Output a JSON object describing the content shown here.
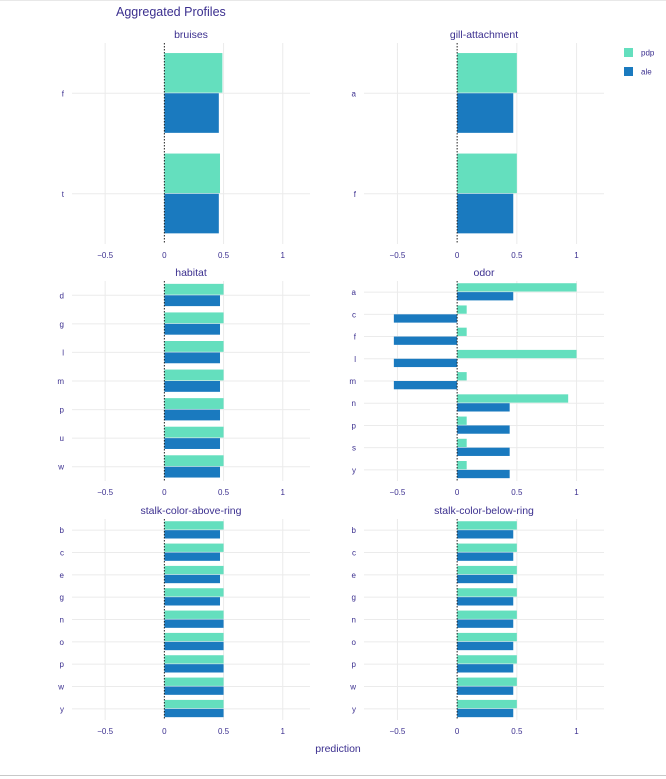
{
  "chart_data": {
    "type": "bar",
    "orientation": "horizontal",
    "title": "Aggregated Profiles",
    "xlabel": "prediction",
    "xlim": [
      -0.78,
      1.23
    ],
    "xticks": [
      -0.5,
      0,
      0.5,
      1
    ],
    "xtick_labels": [
      "−0.5",
      "0",
      "0.5",
      "1"
    ],
    "baseline": 0,
    "grid": true,
    "legend_position": "top-right",
    "legend": [
      {
        "name": "pdp",
        "color": "#64dfbe"
      },
      {
        "name": "ale",
        "color": "#1a7abf"
      }
    ],
    "panels": [
      {
        "title": "bruises",
        "categories": [
          "f",
          "t"
        ],
        "series": [
          {
            "name": "pdp",
            "values": [
              0.49,
              0.47
            ]
          },
          {
            "name": "ale",
            "values": [
              0.46,
              0.46
            ]
          }
        ]
      },
      {
        "title": "gill-attachment",
        "categories": [
          "a",
          "f"
        ],
        "series": [
          {
            "name": "pdp",
            "values": [
              0.5,
              0.5
            ]
          },
          {
            "name": "ale",
            "values": [
              0.47,
              0.47
            ]
          }
        ]
      },
      {
        "title": "habitat",
        "categories": [
          "d",
          "g",
          "l",
          "m",
          "p",
          "u",
          "w"
        ],
        "series": [
          {
            "name": "pdp",
            "values": [
              0.5,
              0.5,
              0.5,
              0.5,
              0.5,
              0.5,
              0.5
            ]
          },
          {
            "name": "ale",
            "values": [
              0.47,
              0.47,
              0.47,
              0.47,
              0.47,
              0.47,
              0.47
            ]
          }
        ]
      },
      {
        "title": "odor",
        "categories": [
          "a",
          "c",
          "f",
          "l",
          "m",
          "n",
          "p",
          "s",
          "y"
        ],
        "series": [
          {
            "name": "pdp",
            "values": [
              1.0,
              0.08,
              0.08,
              1.0,
              0.08,
              0.93,
              0.08,
              0.08,
              0.08
            ]
          },
          {
            "name": "ale",
            "values": [
              0.47,
              -0.53,
              -0.53,
              -0.53,
              -0.53,
              0.44,
              0.44,
              0.44,
              0.44
            ]
          }
        ]
      },
      {
        "title": "stalk-color-above-ring",
        "categories": [
          "b",
          "c",
          "e",
          "g",
          "n",
          "o",
          "p",
          "w",
          "y"
        ],
        "series": [
          {
            "name": "pdp",
            "values": [
              0.5,
              0.5,
              0.5,
              0.5,
              0.5,
              0.5,
              0.5,
              0.5,
              0.5
            ]
          },
          {
            "name": "ale",
            "values": [
              0.47,
              0.47,
              0.47,
              0.47,
              0.5,
              0.5,
              0.5,
              0.5,
              0.5
            ]
          }
        ]
      },
      {
        "title": "stalk-color-below-ring",
        "categories": [
          "b",
          "c",
          "e",
          "g",
          "n",
          "o",
          "p",
          "w",
          "y"
        ],
        "series": [
          {
            "name": "pdp",
            "values": [
              0.5,
              0.5,
              0.5,
              0.5,
              0.5,
              0.5,
              0.5,
              0.5,
              0.5
            ]
          },
          {
            "name": "ale",
            "values": [
              0.47,
              0.47,
              0.47,
              0.47,
              0.47,
              0.47,
              0.47,
              0.47,
              0.47
            ]
          }
        ]
      }
    ]
  }
}
